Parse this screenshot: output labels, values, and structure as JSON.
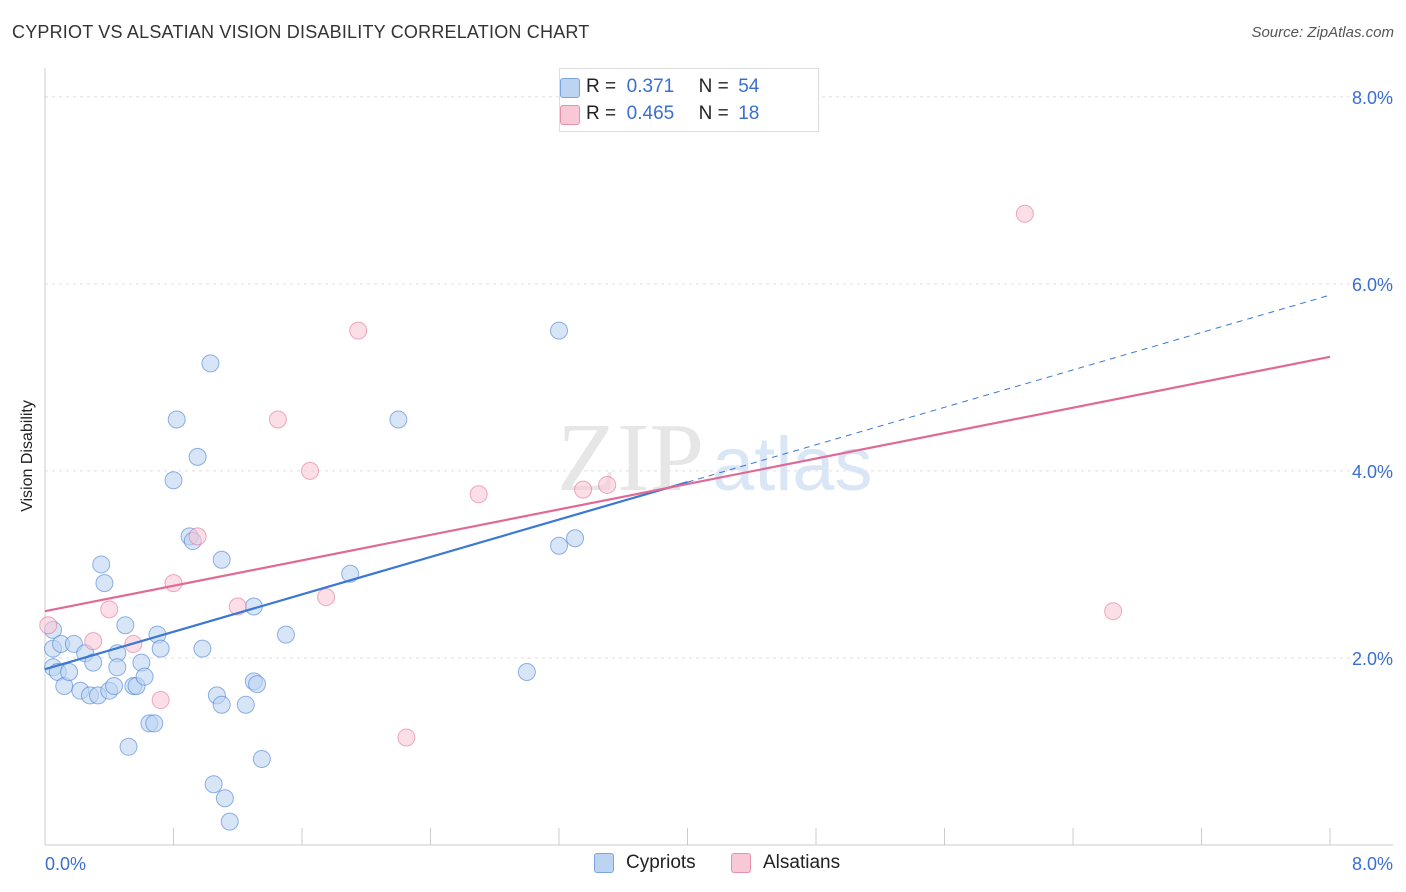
{
  "title": "CYPRIOT VS ALSATIAN VISION DISABILITY CORRELATION CHART",
  "source": "Source: ZipAtlas.com",
  "watermark": {
    "zip": "ZIP",
    "atlas": "atlas"
  },
  "legend_top": {
    "r_label": "R =",
    "n_label": "N =",
    "rows": [
      {
        "r": "0.371",
        "n": "54",
        "color": "#bcd4f2",
        "border": "#7aa6e0"
      },
      {
        "r": "0.465",
        "n": "18",
        "color": "#f8c8d6",
        "border": "#e891ad"
      }
    ]
  },
  "chart_data": {
    "type": "scatter",
    "title": "CYPRIOT VS ALSATIAN VISION DISABILITY CORRELATION CHART",
    "xlabel": "",
    "ylabel": "Vision Disability",
    "xlim": [
      0,
      8
    ],
    "ylim": [
      0,
      8
    ],
    "x_tick_labels": [
      "0.0%",
      "8.0%"
    ],
    "y_ticks": [
      2,
      4,
      6,
      8
    ],
    "y_tick_labels": [
      "2.0%",
      "4.0%",
      "6.0%",
      "8.0%"
    ],
    "grid": true,
    "legend_position": "bottom",
    "series": [
      {
        "name": "Cypriots",
        "color": "#3a78d4",
        "fill": "#bcd4f2",
        "r": 0.371,
        "n": 54,
        "trend": {
          "x0": 0.0,
          "y0": 1.88,
          "x1": 4.0,
          "y1": 3.88,
          "dashed_to_x": 8.0,
          "dashed_to_y": 5.88
        },
        "points": [
          [
            0.05,
            2.3
          ],
          [
            0.05,
            2.1
          ],
          [
            0.05,
            1.9
          ],
          [
            0.08,
            1.85
          ],
          [
            0.1,
            2.15
          ],
          [
            0.12,
            1.7
          ],
          [
            0.15,
            1.85
          ],
          [
            0.18,
            2.15
          ],
          [
            0.22,
            1.65
          ],
          [
            0.25,
            2.05
          ],
          [
            0.28,
            1.6
          ],
          [
            0.3,
            1.95
          ],
          [
            0.33,
            1.6
          ],
          [
            0.35,
            3.0
          ],
          [
            0.37,
            2.8
          ],
          [
            0.4,
            1.65
          ],
          [
            0.43,
            1.7
          ],
          [
            0.45,
            2.05
          ],
          [
            0.45,
            1.9
          ],
          [
            0.5,
            2.35
          ],
          [
            0.52,
            1.05
          ],
          [
            0.55,
            1.7
          ],
          [
            0.57,
            1.7
          ],
          [
            0.6,
            1.95
          ],
          [
            0.62,
            1.8
          ],
          [
            0.65,
            1.3
          ],
          [
            0.68,
            1.3
          ],
          [
            0.7,
            2.25
          ],
          [
            0.72,
            2.1
          ],
          [
            0.8,
            3.9
          ],
          [
            0.82,
            4.55
          ],
          [
            0.9,
            3.3
          ],
          [
            0.92,
            3.25
          ],
          [
            0.95,
            4.15
          ],
          [
            0.98,
            2.1
          ],
          [
            1.03,
            5.15
          ],
          [
            1.05,
            0.65
          ],
          [
            1.07,
            1.6
          ],
          [
            1.1,
            3.05
          ],
          [
            1.1,
            1.5
          ],
          [
            1.12,
            0.5
          ],
          [
            1.15,
            0.25
          ],
          [
            1.25,
            1.5
          ],
          [
            1.3,
            1.75
          ],
          [
            1.3,
            2.55
          ],
          [
            1.32,
            1.72
          ],
          [
            1.35,
            0.92
          ],
          [
            1.5,
            2.25
          ],
          [
            1.9,
            2.9
          ],
          [
            2.2,
            4.55
          ],
          [
            3.0,
            1.85
          ],
          [
            3.2,
            3.2
          ],
          [
            3.2,
            5.5
          ],
          [
            3.3,
            3.28
          ]
        ]
      },
      {
        "name": "Alsatians",
        "color": "#e06a95",
        "fill": "#f8c8d6",
        "r": 0.465,
        "n": 18,
        "trend": {
          "x0": 0.0,
          "y0": 2.5,
          "x1": 8.0,
          "y1": 5.22
        },
        "points": [
          [
            0.02,
            2.35
          ],
          [
            0.3,
            2.18
          ],
          [
            0.4,
            2.52
          ],
          [
            0.55,
            2.15
          ],
          [
            0.72,
            1.55
          ],
          [
            0.8,
            2.8
          ],
          [
            0.95,
            3.3
          ],
          [
            1.2,
            2.55
          ],
          [
            1.45,
            4.55
          ],
          [
            1.65,
            4.0
          ],
          [
            1.75,
            2.65
          ],
          [
            1.95,
            5.5
          ],
          [
            2.25,
            1.15
          ],
          [
            2.7,
            3.75
          ],
          [
            3.35,
            3.8
          ],
          [
            3.5,
            3.85
          ],
          [
            6.1,
            6.75
          ],
          [
            6.65,
            2.5
          ]
        ]
      }
    ]
  }
}
